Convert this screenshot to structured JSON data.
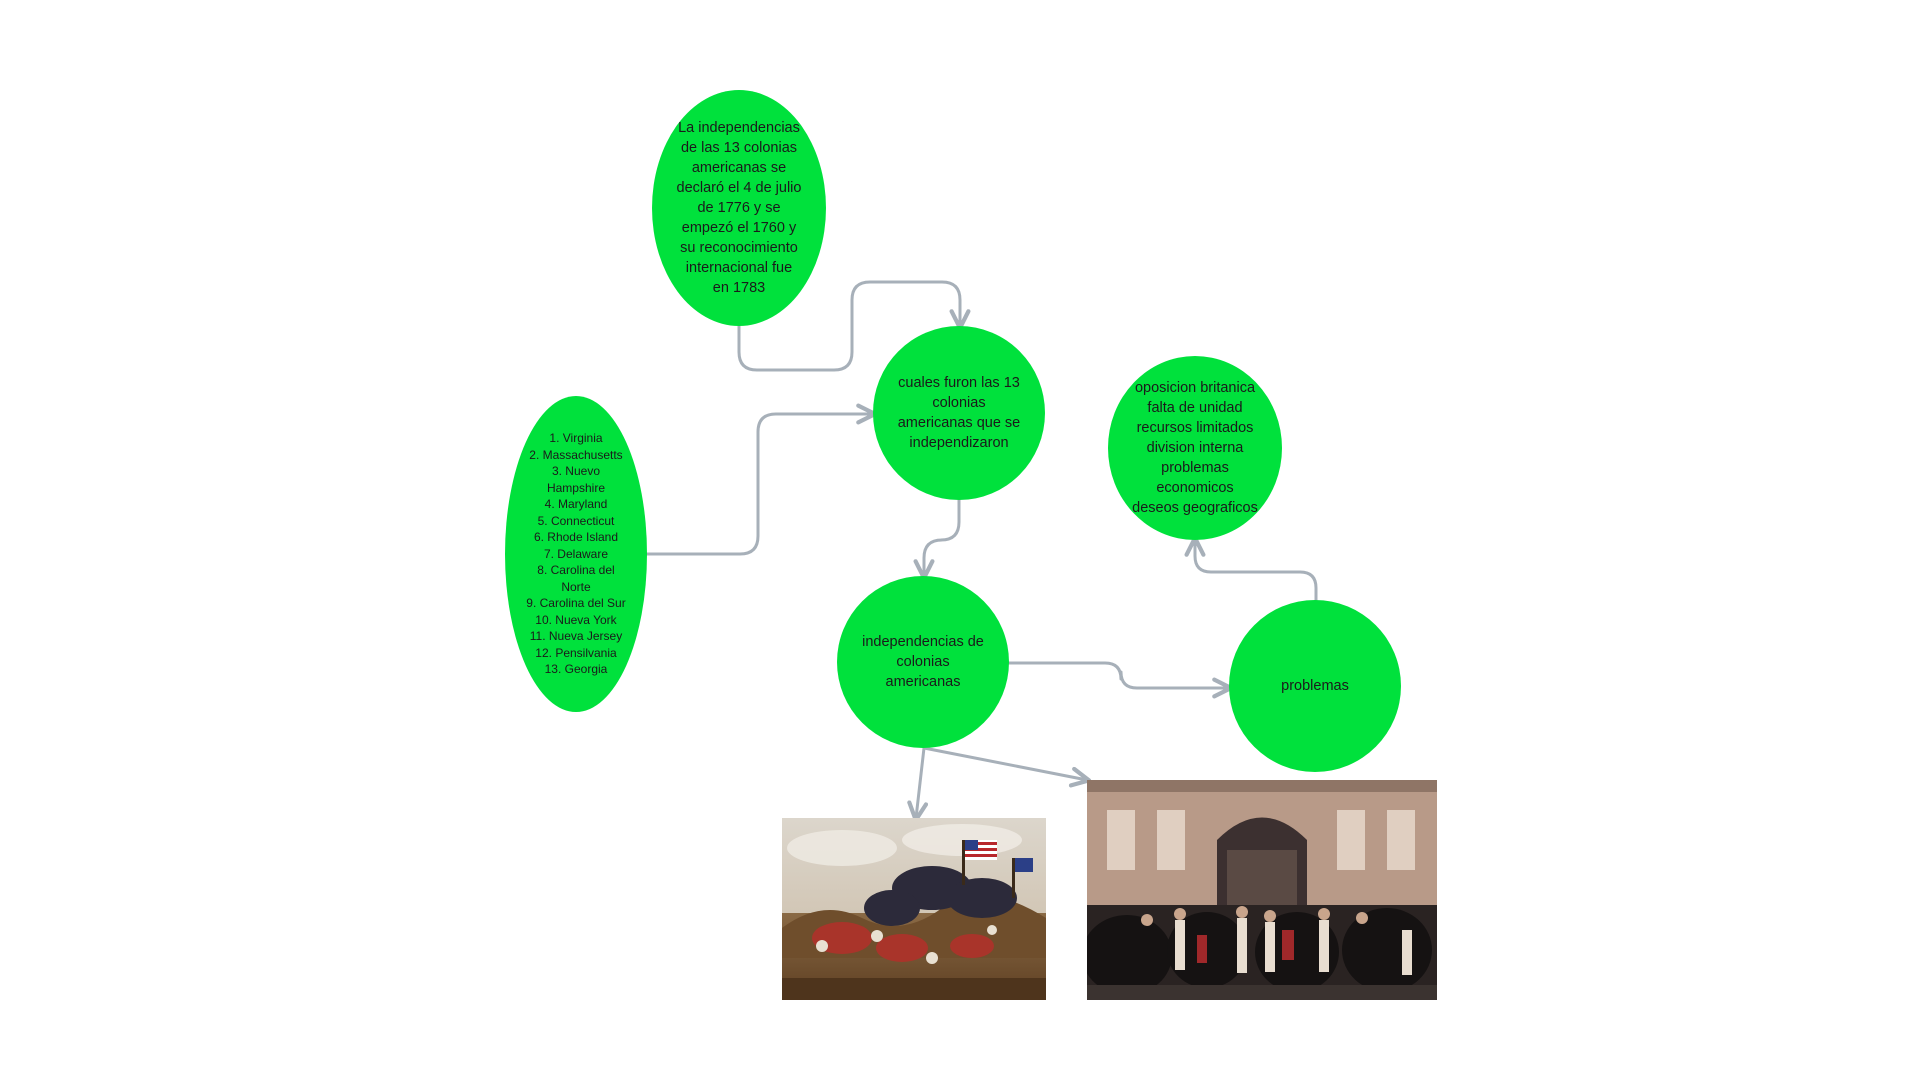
{
  "diagram": {
    "nodes": {
      "main": "La independencias\nde las 13 colonias\namericanas se\ndeclaró el 4 de julio\nde 1776 y se\nempezó el 1760 y\nsu reconocimiento\ninternacional fue\nen 1783",
      "cuales": "cuales furon las 13\ncolonias\namericanas que se\nindependizaron",
      "colonias_list": "1. Virginia\n2. Massachusetts\n3. Nuevo\nHampshire\n4. Maryland\n5. Connecticut\n6. Rhode Island\n7. Delaware\n8. Carolina del\nNorte\n9. Carolina del Sur\n10. Nueva York\n11. Nueva Jersey\n12. Pensilvania\n13. Georgia",
      "oposicion": "oposicion britanica\nfalta de unidad\nrecursos limitados\ndivision interna\nproblemas\neconomicos\ndeseos geograficos",
      "independencias": "independencias de\ncolonias\namericanas",
      "problemas": "problemas"
    },
    "images": {
      "battle": "battle-painting",
      "crowd": "crowd-painting"
    },
    "colors": {
      "node_fill": "#00e13c",
      "connector": "#a7b0b9",
      "text": "#1a1a1a"
    }
  }
}
